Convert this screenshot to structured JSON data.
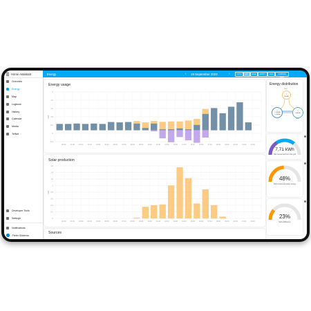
{
  "sidebar": {
    "title": "Home Assistant",
    "items": [
      {
        "label": "Overview",
        "icon": "view-dashboard-icon"
      },
      {
        "label": "Energy",
        "icon": "lightning-bolt-icon",
        "active": true
      },
      {
        "label": "Map",
        "icon": "map-icon"
      },
      {
        "label": "Logbook",
        "icon": "logbook-icon"
      },
      {
        "label": "History",
        "icon": "chart-box-icon"
      },
      {
        "label": "Calendar",
        "icon": "calendar-icon"
      },
      {
        "label": "Media",
        "icon": "play-box-icon"
      },
      {
        "label": "TelNet",
        "icon": "network-icon"
      }
    ],
    "bottom_items": [
      {
        "label": "Developer Tools",
        "icon": "hammer-icon"
      },
      {
        "label": "Settings",
        "icon": "cog-icon"
      },
      {
        "label": "Notifications",
        "icon": "bell-icon"
      },
      {
        "label": "Pieter Sikkema",
        "icon": "avatar"
      }
    ]
  },
  "header": {
    "title": "Energy",
    "date": "18 September 2023",
    "prev": "‹",
    "next": "›",
    "buttons": [
      "TODAY",
      "DAY",
      "WEEK",
      "MONTH",
      "YEAR",
      "COMPARE DATA"
    ],
    "selected": "DAY"
  },
  "colors": {
    "accent": "#03a9f4",
    "grid": "#5b7d98",
    "solar": "#fbc26e",
    "return": "#b69ae6",
    "battery": "#50b5a8"
  },
  "cards": {
    "usage_title": "Energy usage",
    "solar_title": "Solar production",
    "sources_title": "Sources",
    "distribution_title": "Energy distribution"
  },
  "distribution": {
    "solar_label": "Solar",
    "solar_value": "0,0 kWh",
    "grid_in": "← 4,66 kWh",
    "grid_out": "→ 0,00 kWh",
    "home_label": "Home",
    "home_value": "1,88 kWh"
  },
  "gauges": [
    {
      "value": "7,71 kWh",
      "label": "Net consumed from the grid",
      "fraction": 0.72,
      "color": "#03a9f4"
    },
    {
      "value": "48%",
      "label": "Self-consumed solar energy",
      "fraction": 0.48,
      "color": "#ff9800"
    },
    {
      "value": "23%",
      "label": "Self-sufficiency",
      "fraction": 0.23,
      "color": "#ff9800"
    }
  ],
  "chart_data": [
    {
      "type": "bar",
      "title": "Energy usage",
      "ylabel": "kWh",
      "ylim": [
        -0.6,
        2.0
      ],
      "yticks": [
        "2",
        "1.6",
        "1.2",
        "0.8",
        "0.4",
        "0",
        "-0.4"
      ],
      "grid": true,
      "categories": [
        "00:00",
        "01:00",
        "02:00",
        "03:00",
        "04:00",
        "05:00",
        "06:00",
        "07:00",
        "08:00",
        "09:00",
        "10:00",
        "11:00",
        "12:00",
        "13:00",
        "14:00",
        "15:00",
        "16:00",
        "17:00",
        "18:00",
        "19:00",
        "20:00",
        "21:00",
        "22:00",
        "23:00"
      ],
      "xticks": [
        "00:00",
        "01:00",
        "02:00",
        "03:00",
        "04:00",
        "05:00",
        "06:00",
        "07:00",
        "08:00",
        "09:00",
        "10:00",
        "11:00",
        "12:00",
        "13:00",
        "14:00",
        "15:00",
        "16:00",
        "17:00",
        "18:00",
        "19:00",
        "20:00",
        "21:00",
        "22:00"
      ],
      "series": [
        {
          "key": "grid",
          "values": [
            0.32,
            0.32,
            0.34,
            0.32,
            0.34,
            0.32,
            0.42,
            0.4,
            0.42,
            0.35,
            0.12,
            0.35,
            0.05,
            0.05,
            0.1,
            0.05,
            0.28,
            0.85,
            1.15,
            0.88,
            1.22,
            1.45,
            0.4,
            0
          ]
        },
        {
          "key": "solar",
          "values": [
            0,
            0,
            0,
            0,
            0,
            0,
            0,
            0,
            0,
            0.12,
            0.28,
            0.12,
            0.38,
            0.4,
            0.35,
            0.45,
            0.3,
            0.25,
            0,
            0,
            0,
            0,
            0,
            0
          ]
        },
        {
          "key": "return",
          "values": [
            0,
            0,
            0,
            0,
            0,
            0,
            0,
            0,
            0,
            0,
            0,
            -0.05,
            -0.42,
            -0.62,
            -0.35,
            -0.52,
            -0.65,
            -0.38,
            0,
            0,
            0,
            0,
            0,
            0
          ]
        }
      ]
    },
    {
      "type": "bar",
      "title": "Solar production",
      "ylabel": "kWh",
      "ylim": [
        0,
        1.6
      ],
      "yticks": [
        "1.6",
        "1.4",
        "1.2",
        "1",
        "0.8",
        "0.6",
        "0.4",
        "0.2",
        "0"
      ],
      "grid": true,
      "categories": [
        "00:00",
        "01:00",
        "02:00",
        "03:00",
        "04:00",
        "05:00",
        "06:00",
        "07:00",
        "08:00",
        "09:00",
        "10:00",
        "11:00",
        "12:00",
        "13:00",
        "14:00",
        "15:00",
        "16:00",
        "17:00",
        "18:00",
        "19:00",
        "20:00",
        "21:00",
        "22:00",
        "23:00"
      ],
      "xticks": [
        "00:00",
        "01:00",
        "02:00",
        "03:00",
        "04:00",
        "05:00",
        "06:00",
        "07:00",
        "08:00",
        "09:00",
        "10:00",
        "11:00",
        "12:00",
        "13:00",
        "14:00",
        "15:00",
        "16:00",
        "17:00",
        "18:00",
        "19:00",
        "20:00",
        "21:00",
        "22:00"
      ],
      "series": [
        {
          "key": "solar",
          "values": [
            0,
            0,
            0,
            0,
            0,
            0,
            0,
            0,
            0,
            0.02,
            0.35,
            0.4,
            0.42,
            1.0,
            1.55,
            1.22,
            0.45,
            0.88,
            0.4,
            0.05,
            0,
            0,
            0,
            0
          ]
        }
      ]
    }
  ]
}
